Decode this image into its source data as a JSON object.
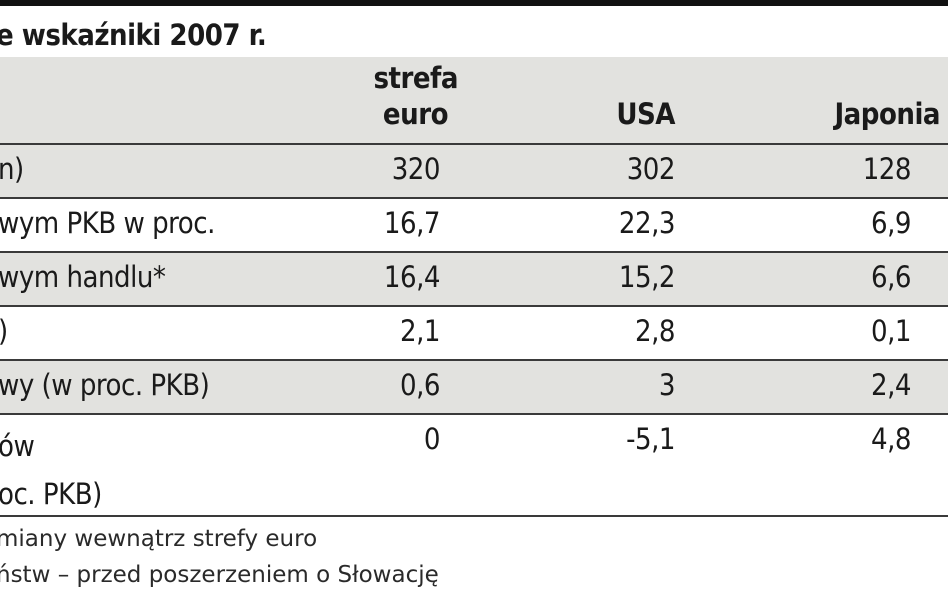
{
  "title": "e wskaźniki 2007 r.",
  "columns": {
    "eurozone_line1": "strefa",
    "eurozone_line2": "euro",
    "usa": "USA",
    "japan": "Japonia"
  },
  "rows": [
    {
      "label": "n)",
      "label2": "",
      "euro": "320",
      "usa": "302",
      "japan": "128"
    },
    {
      "label": "wym PKB w proc.",
      "label2": "",
      "euro": "16,7",
      "usa": "22,3",
      "japan": "6,9"
    },
    {
      "label": "wym handlu*",
      "label2": "",
      "euro": "16,4",
      "usa": "15,2",
      "japan": "6,6"
    },
    {
      "label": ")",
      "label2": "",
      "euro": "2,1",
      "usa": "2,8",
      "japan": "0,1"
    },
    {
      "label": "wy (w proc. PKB)",
      "label2": "",
      "euro": "0,6",
      "usa": "3",
      "japan": "2,4"
    },
    {
      "label": "ów",
      "label2": "oc. PKB)",
      "euro": "0",
      "usa": "-5,1",
      "japan": "4,8"
    }
  ],
  "footnotes": [
    "miany wewnątrz strefy euro",
    "ństw – przed poszerzeniem o Słowację"
  ]
}
